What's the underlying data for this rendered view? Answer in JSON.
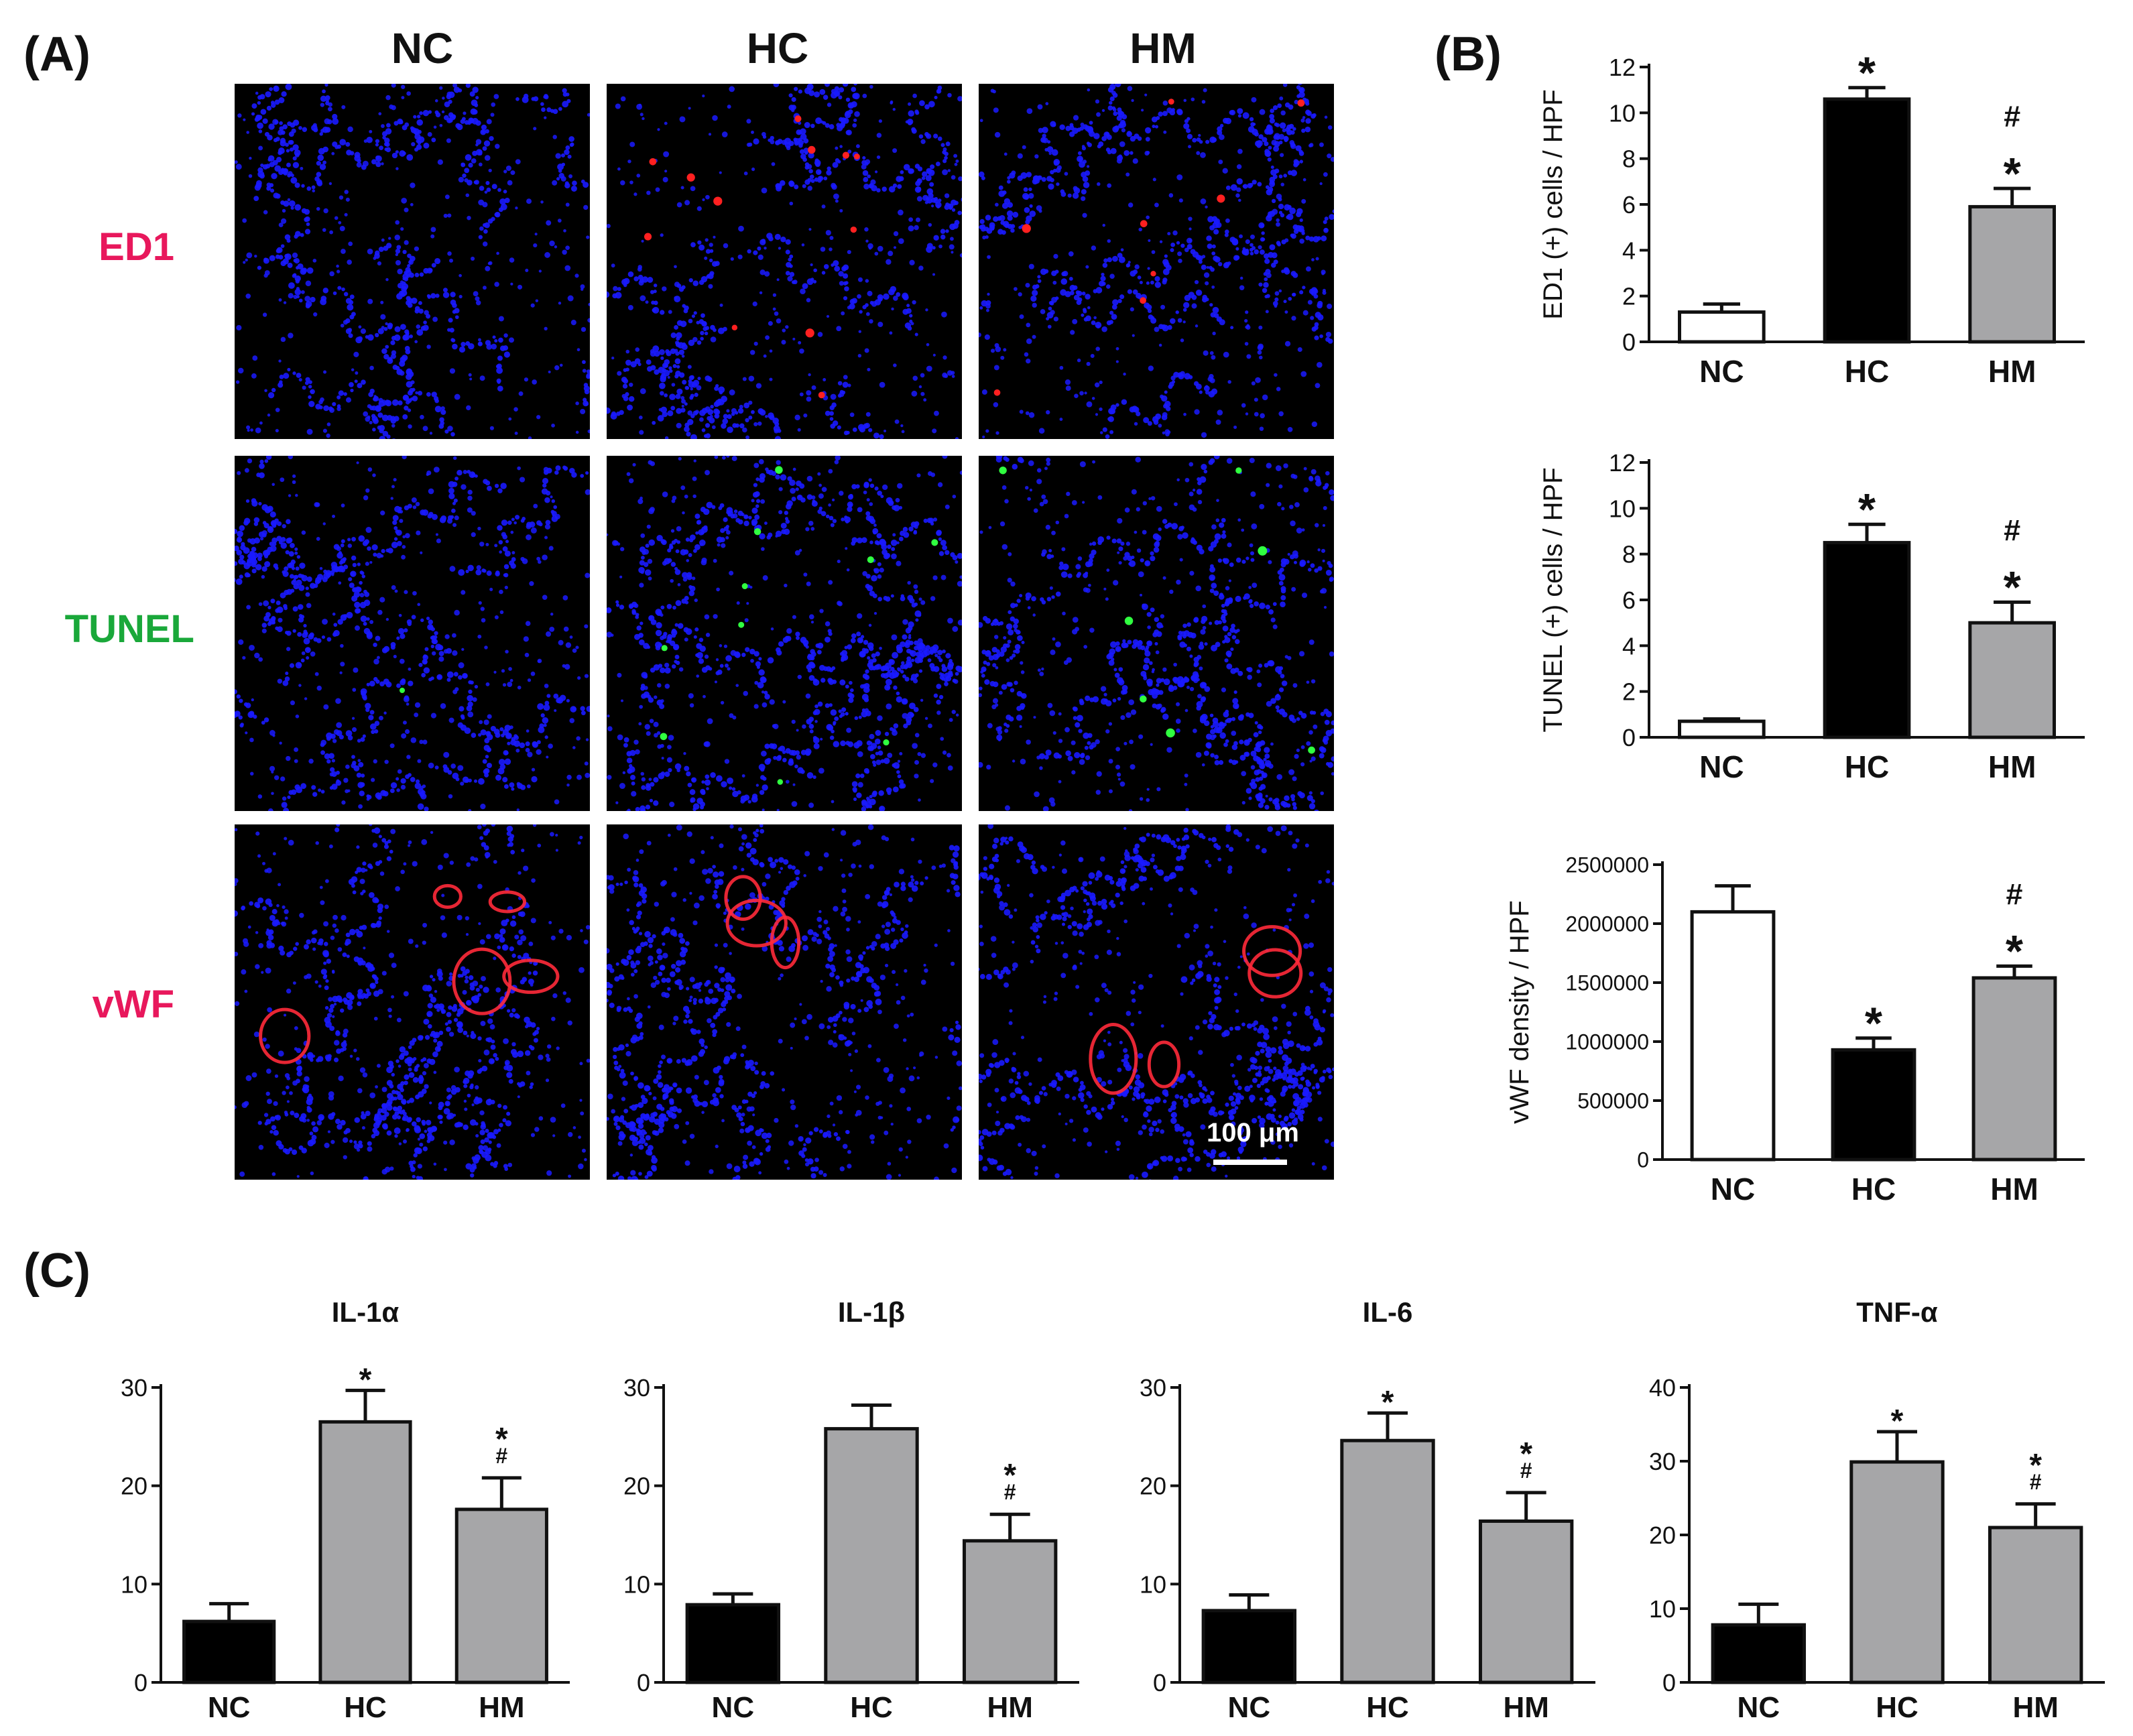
{
  "panels": {
    "a_label": "(A)",
    "b_label": "(B)",
    "c_label": "(C)"
  },
  "micrographs": {
    "columns": [
      "NC",
      "HC",
      "HM"
    ],
    "rows": [
      {
        "label": "ED1",
        "color": "#e8185c",
        "marker_color": "#ff2020"
      },
      {
        "label": "TUNEL",
        "color": "#1aa83a",
        "marker_color": "#30ff40"
      },
      {
        "label": "vWF",
        "color": "#e8185c",
        "marker_color": "#ff2a3a"
      }
    ],
    "nucleus_color": "#1a1aff",
    "scale_bar_label": "100  μm"
  },
  "chart_data": [
    {
      "type": "bar",
      "panel": "B",
      "categories": [
        "NC",
        "HC",
        "HM"
      ],
      "values": [
        1.3,
        10.6,
        5.9
      ],
      "errors": [
        0.35,
        0.5,
        0.8
      ],
      "bar_colors": [
        "#ffffff",
        "#000000",
        "#a6a6a8"
      ],
      "ylabel": "ED1 (+) cells / HPF",
      "ylim": [
        0,
        12
      ],
      "yticks": [
        "0",
        "2",
        "4",
        "6",
        "8",
        "10",
        "12"
      ],
      "annotations": [
        [],
        [
          "*"
        ],
        [
          "#",
          "*"
        ]
      ]
    },
    {
      "type": "bar",
      "panel": "B",
      "categories": [
        "NC",
        "HC",
        "HM"
      ],
      "values": [
        0.7,
        8.5,
        5.0
      ],
      "errors": [
        0.1,
        0.8,
        0.9
      ],
      "bar_colors": [
        "#ffffff",
        "#000000",
        "#a6a6a8"
      ],
      "ylabel": "TUNEL (+) cells / HPF",
      "ylim": [
        0,
        12
      ],
      "yticks": [
        "0",
        "2",
        "4",
        "6",
        "8",
        "10",
        "12"
      ],
      "annotations": [
        [],
        [
          "*"
        ],
        [
          "#",
          "*"
        ]
      ]
    },
    {
      "type": "bar",
      "panel": "B",
      "categories": [
        "NC",
        "HC",
        "HM"
      ],
      "values": [
        2100000,
        930000,
        1540000
      ],
      "errors": [
        220000,
        100000,
        100000
      ],
      "bar_colors": [
        "#ffffff",
        "#000000",
        "#a6a6a8"
      ],
      "ylabel": "vWF density / HPF",
      "ylim": [
        0,
        2500000
      ],
      "yticks": [
        "0",
        "500000",
        "1000000",
        "1500000",
        "2000000",
        "2500000"
      ],
      "annotations": [
        [],
        [
          "*"
        ],
        [
          "#",
          "*"
        ]
      ]
    },
    {
      "type": "bar",
      "panel": "C",
      "title": "IL-1α",
      "categories": [
        "NC",
        "HC",
        "HM"
      ],
      "values": [
        6.2,
        26.5,
        17.6
      ],
      "errors": [
        1.8,
        3.2,
        3.2
      ],
      "bar_colors": [
        "#000000",
        "#a6a6a8",
        "#a6a6a8"
      ],
      "ylim": [
        0,
        30
      ],
      "yticks": [
        "0",
        "10",
        "20",
        "30"
      ],
      "annotations": [
        [],
        [
          "*"
        ],
        [
          "*",
          "#"
        ]
      ]
    },
    {
      "type": "bar",
      "panel": "C",
      "title": "IL-1β",
      "categories": [
        "NC",
        "HC",
        "HM"
      ],
      "values": [
        7.9,
        25.8,
        14.4
      ],
      "errors": [
        1.1,
        2.4,
        2.7
      ],
      "bar_colors": [
        "#000000",
        "#a6a6a8",
        "#a6a6a8"
      ],
      "ylim": [
        0,
        30
      ],
      "yticks": [
        "0",
        "10",
        "20",
        "30"
      ],
      "annotations": [
        [],
        [],
        [
          "*",
          "#"
        ]
      ]
    },
    {
      "type": "bar",
      "panel": "C",
      "title": "IL-6",
      "categories": [
        "NC",
        "HC",
        "HM"
      ],
      "values": [
        7.3,
        24.6,
        16.4
      ],
      "errors": [
        1.6,
        2.8,
        2.9
      ],
      "bar_colors": [
        "#000000",
        "#a6a6a8",
        "#a6a6a8"
      ],
      "ylim": [
        0,
        30
      ],
      "yticks": [
        "0",
        "10",
        "20",
        "30"
      ],
      "annotations": [
        [],
        [
          "*"
        ],
        [
          "*",
          "#"
        ]
      ]
    },
    {
      "type": "bar",
      "panel": "C",
      "title": "TNF-α",
      "categories": [
        "NC",
        "HC",
        "HM"
      ],
      "values": [
        7.8,
        29.9,
        21.0
      ],
      "errors": [
        2.8,
        4.1,
        3.2
      ],
      "bar_colors": [
        "#000000",
        "#a6a6a8",
        "#a6a6a8"
      ],
      "ylim": [
        0,
        40
      ],
      "yticks": [
        "0",
        "10",
        "20",
        "30",
        "40"
      ],
      "annotations": [
        [],
        [
          "*"
        ],
        [
          "*",
          "#"
        ]
      ]
    }
  ]
}
